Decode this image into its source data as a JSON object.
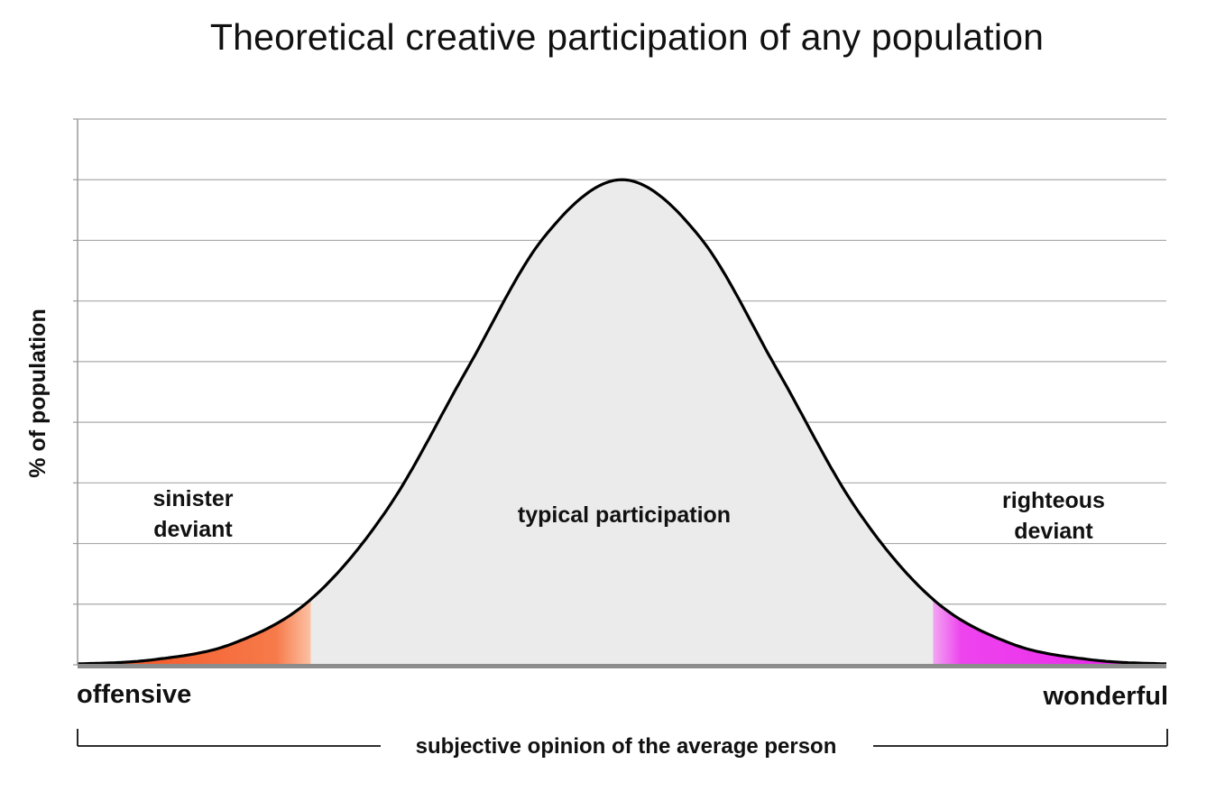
{
  "chart_data": {
    "type": "area",
    "title": "Theoretical creative participation of any population",
    "xlabel": "subjective opinion of the average person",
    "ylabel": "% of population",
    "x_end_labels": {
      "left": "offensive",
      "right": "wonderful"
    },
    "xlim": [
      -3.5,
      3.5
    ],
    "ylim": [
      0,
      1.125
    ],
    "grid": true,
    "series": [
      {
        "x": [
          -3.5,
          -3.0,
          -2.5,
          -2.0,
          -1.5,
          -1.0,
          -0.5,
          0,
          0.5,
          1.0,
          1.5,
          2.0,
          2.5,
          3.0,
          3.5
        ],
        "values": [
          0.002,
          0.011,
          0.044,
          0.135,
          0.325,
          0.607,
          0.882,
          1.0,
          0.882,
          0.607,
          0.325,
          0.135,
          0.044,
          0.011,
          0.002
        ]
      }
    ],
    "regions": [
      {
        "label": "sinister deviant",
        "lines": [
          "sinister",
          "deviant"
        ],
        "from": -3.5,
        "to": -2.0,
        "color": "#F4622A"
      },
      {
        "label": "typical participation",
        "lines": [
          "typical participation"
        ],
        "from": -2.0,
        "to": 2.0,
        "color": "#EBEBEB"
      },
      {
        "label": "righteous deviant",
        "lines": [
          "righteous",
          "deviant"
        ],
        "from": 2.0,
        "to": 3.5,
        "color": "#EE22EE"
      }
    ]
  }
}
